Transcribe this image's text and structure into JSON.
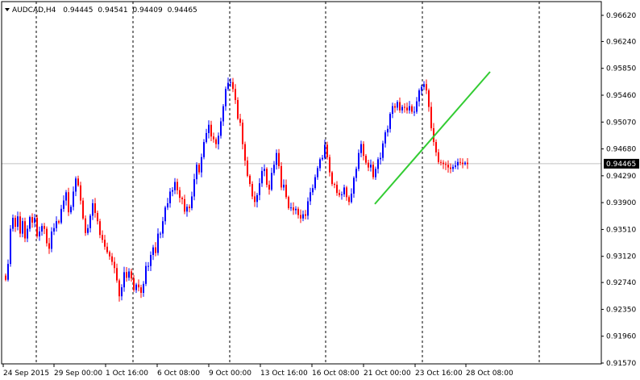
{
  "header": {
    "symbol": "AUDCAD",
    "timeframe": "H4",
    "title": "AUDCAD,H4",
    "open": "0.94445",
    "high": "0.94541",
    "low": "0.94409",
    "close": "0.94465",
    "menu_icon": "triangle-down-icon"
  },
  "colors": {
    "background": "#ffffff",
    "frame": "#000000",
    "grid": "#000000",
    "bull": "#0000ff",
    "bear": "#ff0000",
    "trendline": "#33cc33",
    "bid_line": "#c0c0c0"
  },
  "chart_data": {
    "type": "candlestick",
    "title": "AUDCAD,H4",
    "price_axis": {
      "ylim": [
        0.9157,
        0.9662
      ],
      "ticks": [
        "0.96620",
        "0.96240",
        "0.95850",
        "0.95460",
        "0.95070",
        "0.94680",
        "0.94290",
        "0.93900",
        "0.93510",
        "0.93120",
        "0.92740",
        "0.92350",
        "0.91960",
        "0.91570"
      ],
      "current_price": "0.94465"
    },
    "time_axis": {
      "labels": [
        "24 Sep 2015",
        "29 Sep 00:00",
        "1 Oct 16:00",
        "6 Oct 08:00",
        "9 Oct 00:00",
        "13 Oct 16:00",
        "16 Oct 08:00",
        "21 Oct 00:00",
        "23 Oct 16:00",
        "28 Oct 08:00"
      ],
      "separators": [
        "28 Sep",
        "1 Oct",
        "6 Oct",
        "9 Oct",
        "14 Oct",
        "19 Oct",
        "22 Oct",
        "27 Oct"
      ]
    },
    "grid": "vertical-dashed",
    "bar_count": 192,
    "closes": [
      0.9278,
      0.9301,
      0.9352,
      0.9368,
      0.9355,
      0.937,
      0.9345,
      0.9363,
      0.9338,
      0.9352,
      0.9369,
      0.9361,
      0.9368,
      0.9341,
      0.9348,
      0.9356,
      0.9352,
      0.9331,
      0.9323,
      0.9348,
      0.9353,
      0.9363,
      0.9361,
      0.9381,
      0.9393,
      0.9405,
      0.9376,
      0.9384,
      0.9406,
      0.9425,
      0.9415,
      0.9393,
      0.9367,
      0.9346,
      0.9353,
      0.9371,
      0.9389,
      0.9375,
      0.9363,
      0.9343,
      0.9336,
      0.9326,
      0.9318,
      0.9312,
      0.9304,
      0.9295,
      0.9277,
      0.9254,
      0.9267,
      0.9289,
      0.9281,
      0.929,
      0.928,
      0.9263,
      0.9271,
      0.9267,
      0.9259,
      0.9272,
      0.9298,
      0.9298,
      0.9314,
      0.9325,
      0.9317,
      0.9345,
      0.9345,
      0.9363,
      0.9383,
      0.9389,
      0.9406,
      0.9408,
      0.942,
      0.9408,
      0.9397,
      0.9395,
      0.9377,
      0.9384,
      0.9382,
      0.9399,
      0.9424,
      0.9445,
      0.9434,
      0.9456,
      0.9478,
      0.9491,
      0.9503,
      0.9486,
      0.9482,
      0.9475,
      0.9487,
      0.9508,
      0.953,
      0.9555,
      0.9564,
      0.9565,
      0.9555,
      0.9539,
      0.9512,
      0.9506,
      0.9475,
      0.9451,
      0.9429,
      0.9417,
      0.9399,
      0.9391,
      0.9401,
      0.9418,
      0.9436,
      0.9439,
      0.9416,
      0.9409,
      0.9433,
      0.9445,
      0.9462,
      0.9443,
      0.9412,
      0.9416,
      0.9398,
      0.9382,
      0.9383,
      0.9379,
      0.9381,
      0.9372,
      0.9367,
      0.9373,
      0.9371,
      0.9392,
      0.9405,
      0.9411,
      0.9427,
      0.944,
      0.9453,
      0.9455,
      0.9474,
      0.9456,
      0.9434,
      0.9417,
      0.9416,
      0.9404,
      0.9401,
      0.9402,
      0.9412,
      0.9398,
      0.9391,
      0.9403,
      0.9426,
      0.9439,
      0.9462,
      0.9475,
      0.9458,
      0.9448,
      0.9441,
      0.9445,
      0.9427,
      0.9439,
      0.9453,
      0.9455,
      0.9476,
      0.9492,
      0.9497,
      0.9519,
      0.953,
      0.9528,
      0.9536,
      0.9524,
      0.9529,
      0.9528,
      0.9524,
      0.953,
      0.9522,
      0.9522,
      0.9537,
      0.9553,
      0.9558,
      0.9562,
      0.9553,
      0.9529,
      0.9498,
      0.9478,
      0.9463,
      0.9449,
      0.9448,
      0.9446,
      0.9445,
      0.9441,
      0.9439,
      0.9442,
      0.9444,
      0.9449,
      0.9448,
      0.9446,
      0.9448,
      0.9446
    ]
  }
}
